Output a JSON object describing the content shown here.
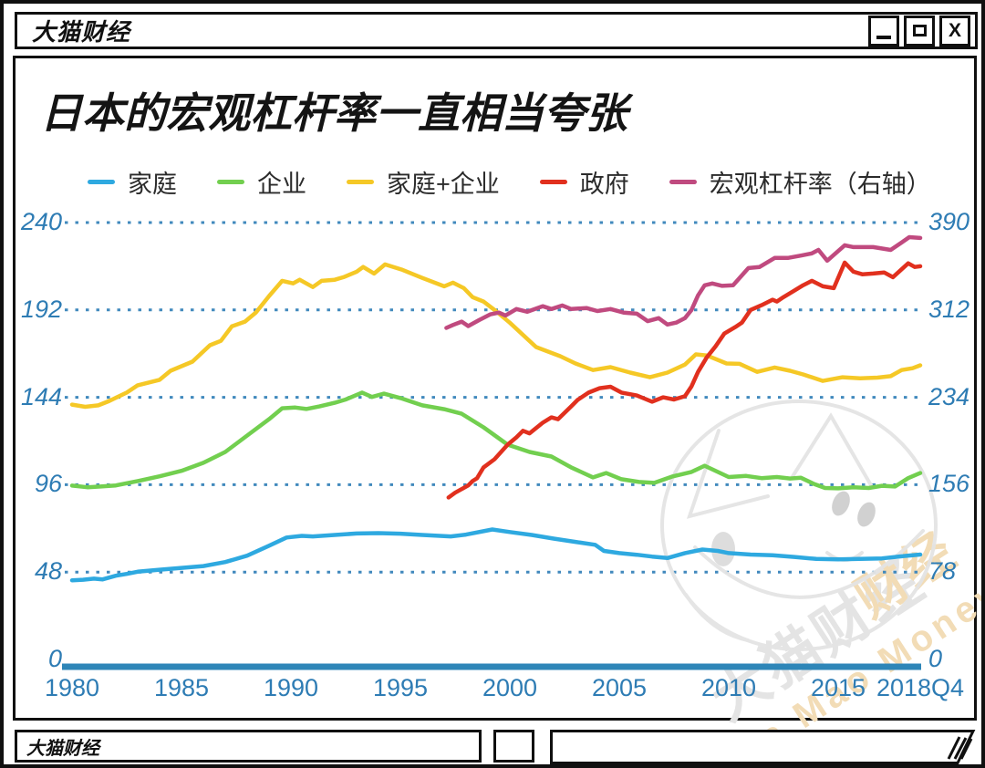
{
  "window": {
    "title": "大猫财经",
    "close_glyph": "X"
  },
  "statusbar": {
    "label": "大猫财经"
  },
  "watermark": {
    "cn": "大猫财经",
    "fj": "财经",
    "en": "Da Mao Money",
    "gray": "#e4e4e4",
    "tan": "#f2dcb6"
  },
  "colors": {
    "axis_text": "#2e7cb4",
    "gridline": "#4189bd",
    "axis_line": "#2e86b8"
  },
  "chart_data": {
    "type": "line",
    "title": "日本的宏观杠杆率一直相当夸张",
    "legend_position": "top",
    "grid": "dotted-horizontal",
    "x_range": [
      1980,
      2018.75
    ],
    "x_ticks": [
      {
        "label": "1980",
        "year": 1980
      },
      {
        "label": "1985",
        "year": 1985
      },
      {
        "label": "1990",
        "year": 1990
      },
      {
        "label": "1995",
        "year": 1995
      },
      {
        "label": "2000",
        "year": 2000
      },
      {
        "label": "2005",
        "year": 2005
      },
      {
        "label": "2010",
        "year": 2010
      },
      {
        "label": "2015",
        "year": 2015
      },
      {
        "label": "2018Q4",
        "year": 2018.75
      }
    ],
    "left_axis": {
      "range": [
        0,
        240
      ],
      "ticks": [
        0,
        48,
        96,
        144,
        192,
        240
      ]
    },
    "right_axis": {
      "range": [
        0,
        390
      ],
      "ticks": [
        0,
        78,
        156,
        234,
        312,
        390
      ]
    },
    "series": [
      {
        "name": "家庭",
        "color": "#2ea9e0",
        "axis": "left",
        "points": [
          [
            1980,
            43.5
          ],
          [
            1980.5,
            43.8
          ],
          [
            1981,
            44.4
          ],
          [
            1981.4,
            44
          ],
          [
            1982,
            46
          ],
          [
            1982.5,
            47
          ],
          [
            1983,
            48.2
          ],
          [
            1984,
            49.3
          ],
          [
            1985,
            50.3
          ],
          [
            1986,
            51.3
          ],
          [
            1987,
            53.5
          ],
          [
            1988,
            57
          ],
          [
            1989,
            62.5
          ],
          [
            1989.8,
            67
          ],
          [
            1990.5,
            67.9
          ],
          [
            1991,
            67.6
          ],
          [
            1992,
            68.4
          ],
          [
            1993,
            69.2
          ],
          [
            1994,
            69.4
          ],
          [
            1995,
            69.1
          ],
          [
            1996,
            68.4
          ],
          [
            1997.3,
            67.6
          ],
          [
            1998,
            68.6
          ],
          [
            1999.2,
            71.4
          ],
          [
            2000,
            70
          ],
          [
            2001,
            68.4
          ],
          [
            2002,
            66.4
          ],
          [
            2003,
            64.6
          ],
          [
            2003.9,
            63
          ],
          [
            2004.3,
            59.6
          ],
          [
            2005,
            58.4
          ],
          [
            2005.8,
            57.5
          ],
          [
            2006.5,
            56.5
          ],
          [
            2007.2,
            55.7
          ],
          [
            2008,
            58.4
          ],
          [
            2008.8,
            60.4
          ],
          [
            2009.5,
            59.6
          ],
          [
            2010,
            58.4
          ],
          [
            2011,
            57.6
          ],
          [
            2012,
            57.2
          ],
          [
            2013,
            56.3
          ],
          [
            2014,
            55.2
          ],
          [
            2015,
            55
          ],
          [
            2016,
            55.2
          ],
          [
            2017,
            55.5
          ],
          [
            2018,
            56.8
          ],
          [
            2018.75,
            57.6
          ]
        ]
      },
      {
        "name": "企业",
        "color": "#72cf4f",
        "axis": "left",
        "points": [
          [
            1980,
            95.5
          ],
          [
            1980.7,
            94.6
          ],
          [
            1981.3,
            95
          ],
          [
            1982,
            95.6
          ],
          [
            1983,
            98
          ],
          [
            1984,
            100.6
          ],
          [
            1985,
            103.6
          ],
          [
            1986,
            108
          ],
          [
            1987,
            114
          ],
          [
            1988,
            123
          ],
          [
            1989,
            132
          ],
          [
            1989.6,
            138
          ],
          [
            1990.2,
            138.4
          ],
          [
            1990.7,
            137.6
          ],
          [
            1991.3,
            139
          ],
          [
            1992,
            141
          ],
          [
            1992.5,
            142.8
          ],
          [
            1993.25,
            146.6
          ],
          [
            1993.7,
            144.2
          ],
          [
            1994.25,
            146
          ],
          [
            1995,
            143.6
          ],
          [
            1996,
            139.6
          ],
          [
            1997,
            137.5
          ],
          [
            1997.8,
            135
          ],
          [
            1998.8,
            127.5
          ],
          [
            1999.9,
            118
          ],
          [
            2000.9,
            114
          ],
          [
            2001.9,
            111.5
          ],
          [
            2002.8,
            105.5
          ],
          [
            2003.8,
            100
          ],
          [
            2004.4,
            102.4
          ],
          [
            2005.1,
            99
          ],
          [
            2005.9,
            97.5
          ],
          [
            2006.6,
            97
          ],
          [
            2007.4,
            100.4
          ],
          [
            2008.3,
            103
          ],
          [
            2008.9,
            106.4
          ],
          [
            2009.5,
            103
          ],
          [
            2010,
            100.2
          ],
          [
            2010.8,
            100.8
          ],
          [
            2011.5,
            99.6
          ],
          [
            2012.2,
            100.2
          ],
          [
            2012.8,
            99.4
          ],
          [
            2013.3,
            99.8
          ],
          [
            2013.9,
            96.4
          ],
          [
            2014.4,
            94.2
          ],
          [
            2015,
            94
          ],
          [
            2015.7,
            94.6
          ],
          [
            2016.4,
            94.2
          ],
          [
            2017,
            95.4
          ],
          [
            2017.6,
            95
          ],
          [
            2018.2,
            99.6
          ],
          [
            2018.75,
            102.4
          ]
        ]
      },
      {
        "name": "家庭+企业",
        "color": "#f5c826",
        "axis": "left",
        "points": [
          [
            1980,
            140
          ],
          [
            1980.6,
            138.8
          ],
          [
            1981.2,
            139.6
          ],
          [
            1981.7,
            142
          ],
          [
            1982.5,
            146.6
          ],
          [
            1983,
            150.6
          ],
          [
            1984,
            153.6
          ],
          [
            1984.5,
            158.6
          ],
          [
            1985.5,
            163.6
          ],
          [
            1986.3,
            172.6
          ],
          [
            1986.8,
            175
          ],
          [
            1987.3,
            183
          ],
          [
            1987.9,
            185.6
          ],
          [
            1988.4,
            190.6
          ],
          [
            1989,
            199.6
          ],
          [
            1989.6,
            208
          ],
          [
            1990.1,
            206.6
          ],
          [
            1990.4,
            208.6
          ],
          [
            1991,
            204.6
          ],
          [
            1991.4,
            208
          ],
          [
            1992,
            208.6
          ],
          [
            1992.4,
            210
          ],
          [
            1993,
            213
          ],
          [
            1993.3,
            215.6
          ],
          [
            1993.8,
            212
          ],
          [
            1994.3,
            217
          ],
          [
            1995.1,
            214
          ],
          [
            1996,
            209.6
          ],
          [
            1997,
            205
          ],
          [
            1997.4,
            207
          ],
          [
            1997.9,
            204
          ],
          [
            1998.3,
            199
          ],
          [
            1998.8,
            196.6
          ],
          [
            1999.3,
            192
          ],
          [
            2000,
            185
          ],
          [
            2001.2,
            171.6
          ],
          [
            2002.3,
            166.6
          ],
          [
            2003,
            162.6
          ],
          [
            2003.8,
            159
          ],
          [
            2004.6,
            160.6
          ],
          [
            2005.5,
            157.6
          ],
          [
            2006.4,
            155
          ],
          [
            2007.2,
            157.6
          ],
          [
            2008,
            162
          ],
          [
            2008.5,
            167.6
          ],
          [
            2009,
            167
          ],
          [
            2009.9,
            162.6
          ],
          [
            2010.5,
            162.4
          ],
          [
            2011.3,
            158
          ],
          [
            2012.1,
            160.4
          ],
          [
            2012.8,
            158.6
          ],
          [
            2013.4,
            156.6
          ],
          [
            2014.3,
            153
          ],
          [
            2015.2,
            155
          ],
          [
            2016,
            154.4
          ],
          [
            2016.8,
            154.8
          ],
          [
            2017.4,
            155.6
          ],
          [
            2017.9,
            159
          ],
          [
            2018.4,
            160
          ],
          [
            2018.75,
            161.6
          ]
        ]
      },
      {
        "name": "政府",
        "color": "#e1301e",
        "axis": "left",
        "points": [
          [
            1997.2,
            89
          ],
          [
            1997.5,
            91.6
          ],
          [
            1997.8,
            93.6
          ],
          [
            1998.1,
            95.6
          ],
          [
            1998.3,
            98
          ],
          [
            1998.5,
            99.5
          ],
          [
            1998.8,
            105.5
          ],
          [
            1999.3,
            110
          ],
          [
            1999.9,
            118
          ],
          [
            2000.3,
            122
          ],
          [
            2000.6,
            125.6
          ],
          [
            2000.9,
            124.2
          ],
          [
            2001.5,
            130
          ],
          [
            2001.9,
            133
          ],
          [
            2002.2,
            132
          ],
          [
            2002.8,
            139
          ],
          [
            2003.1,
            142.6
          ],
          [
            2003.6,
            146.6
          ],
          [
            2004.1,
            149
          ],
          [
            2004.6,
            149.8
          ],
          [
            2005.1,
            146.6
          ],
          [
            2005.8,
            145
          ],
          [
            2006.5,
            141.6
          ],
          [
            2007,
            144
          ],
          [
            2007.5,
            142.8
          ],
          [
            2008,
            144.6
          ],
          [
            2008.3,
            150
          ],
          [
            2008.6,
            158
          ],
          [
            2009,
            166
          ],
          [
            2009.4,
            172
          ],
          [
            2009.8,
            179
          ],
          [
            2010.3,
            182.6
          ],
          [
            2010.6,
            185
          ],
          [
            2011,
            192
          ],
          [
            2011.5,
            194.6
          ],
          [
            2012,
            197.6
          ],
          [
            2012.2,
            196.6
          ],
          [
            2012.5,
            199
          ],
          [
            2013,
            202.6
          ],
          [
            2013.4,
            205.6
          ],
          [
            2013.8,
            208
          ],
          [
            2014.3,
            205
          ],
          [
            2014.8,
            204
          ],
          [
            2015.3,
            218
          ],
          [
            2015.7,
            213
          ],
          [
            2016.1,
            211.6
          ],
          [
            2016.6,
            212
          ],
          [
            2017.1,
            212.6
          ],
          [
            2017.5,
            210
          ],
          [
            2018.2,
            217.6
          ],
          [
            2018.5,
            215.6
          ],
          [
            2018.75,
            216
          ]
        ]
      },
      {
        "name": "宏观杠杆率（右轴）",
        "color": "#c04a7f",
        "axis": "right",
        "points": [
          [
            1997.1,
            296
          ],
          [
            1997.4,
            298.6
          ],
          [
            1997.8,
            301.6
          ],
          [
            1998.1,
            297.6
          ],
          [
            1998.6,
            303
          ],
          [
            1999.1,
            308
          ],
          [
            1999.5,
            309.6
          ],
          [
            1999.8,
            307
          ],
          [
            2000.3,
            312.8
          ],
          [
            2000.8,
            310.4
          ],
          [
            2001.5,
            315.3
          ],
          [
            2001.9,
            312.8
          ],
          [
            2002.4,
            316
          ],
          [
            2002.8,
            312.8
          ],
          [
            2003.5,
            313.7
          ],
          [
            2004,
            311
          ],
          [
            2004.6,
            312.8
          ],
          [
            2005.2,
            309.6
          ],
          [
            2005.8,
            308.7
          ],
          [
            2006.3,
            302
          ],
          [
            2006.8,
            304.7
          ],
          [
            2007.2,
            299
          ],
          [
            2007.6,
            300.7
          ],
          [
            2008,
            304.7
          ],
          [
            2008.3,
            312
          ],
          [
            2008.6,
            325
          ],
          [
            2008.9,
            334
          ],
          [
            2009.25,
            335.6
          ],
          [
            2009.7,
            333.5
          ],
          [
            2010.2,
            334
          ],
          [
            2010.9,
            349.4
          ],
          [
            2011.4,
            350.3
          ],
          [
            2012.1,
            358.4
          ],
          [
            2012.7,
            358.4
          ],
          [
            2013.3,
            360.5
          ],
          [
            2013.8,
            362.5
          ],
          [
            2014.1,
            365.6
          ],
          [
            2014.5,
            356
          ],
          [
            2015.3,
            369.7
          ],
          [
            2015.7,
            368.1
          ],
          [
            2016.6,
            368.1
          ],
          [
            2017.4,
            365.6
          ],
          [
            2017.9,
            372.2
          ],
          [
            2018.25,
            377
          ],
          [
            2018.75,
            376.2
          ]
        ]
      }
    ]
  }
}
